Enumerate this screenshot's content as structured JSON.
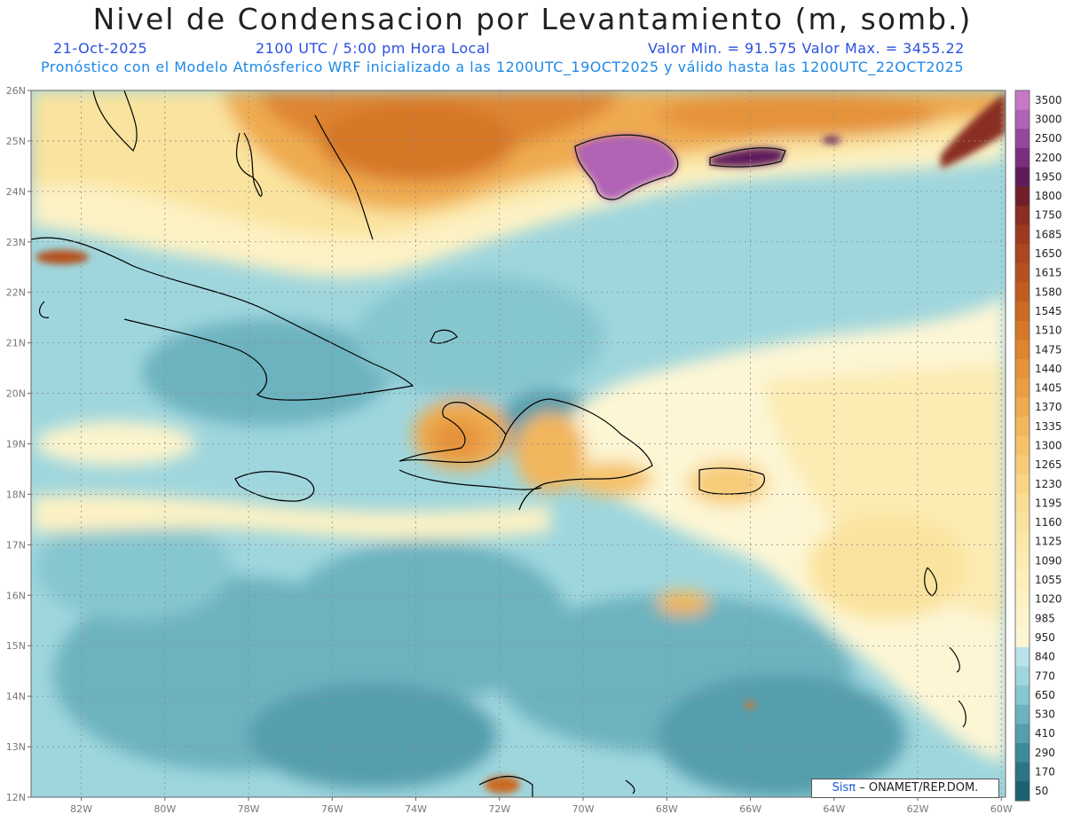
{
  "header": {
    "title": "Nivel de Condensacion por Levantamiento (m, somb.)",
    "date": "21-Oct-2025",
    "time": "2100 UTC / 5:00 pm Hora Local",
    "minmax": "Valor Min. = 91.575   Valor Max. = 3455.22",
    "model": "Pronóstico con el Modelo Atmósferico WRF inicializado a las 1200UTC_19OCT2025 y válido hasta las  1200UTC_22OCT2025"
  },
  "map": {
    "lat_labels": [
      "26N",
      "25N",
      "24N",
      "23N",
      "22N",
      "21N",
      "20N",
      "19N",
      "18N",
      "17N",
      "16N",
      "15N",
      "14N",
      "13N",
      "12N"
    ],
    "lon_labels": [
      "82W",
      "80W",
      "78W",
      "76W",
      "74W",
      "72W",
      "70W",
      "68W",
      "66W",
      "64W",
      "62W",
      "60W"
    ],
    "lat_range": [
      12,
      26
    ],
    "lon_range": [
      -83.2,
      -59.9
    ]
  },
  "legend": {
    "levels": [
      "3500",
      "3000",
      "2500",
      "2200",
      "1950",
      "1800",
      "1750",
      "1685",
      "1650",
      "1615",
      "1580",
      "1545",
      "1510",
      "1475",
      "1440",
      "1405",
      "1370",
      "1335",
      "1300",
      "1265",
      "1230",
      "1195",
      "1160",
      "1125",
      "1090",
      "1055",
      "1020",
      "985",
      "950",
      "840",
      "770",
      "650",
      "530",
      "410",
      "290",
      "170",
      "50"
    ],
    "colors": [
      "#c779c7",
      "#b062b5",
      "#94489b",
      "#7a2f7e",
      "#5e1b5b",
      "#6e1f2a",
      "#8a2d22",
      "#9c3a20",
      "#aa4620",
      "#b6511f",
      "#c05c1f",
      "#cb6a22",
      "#d67727",
      "#de8530",
      "#e5933a",
      "#ea9e44",
      "#efab4f",
      "#f2b65c",
      "#f5c26a",
      "#f7cc78",
      "#f8d585",
      "#f9dd92",
      "#fae39e",
      "#fbe7a8",
      "#fcebb2",
      "#fcefbc",
      "#fdf2c4",
      "#fdf4cc",
      "#fdf6d4",
      "#b8e4ea",
      "#9fd6dd",
      "#86c6cf",
      "#6db3bf",
      "#559ead",
      "#3e8a9b",
      "#2b7587",
      "#1a6272"
    ]
  },
  "credit": {
    "sis": "Sisπ",
    "rest": "– ONAMET/REP.DOM."
  }
}
